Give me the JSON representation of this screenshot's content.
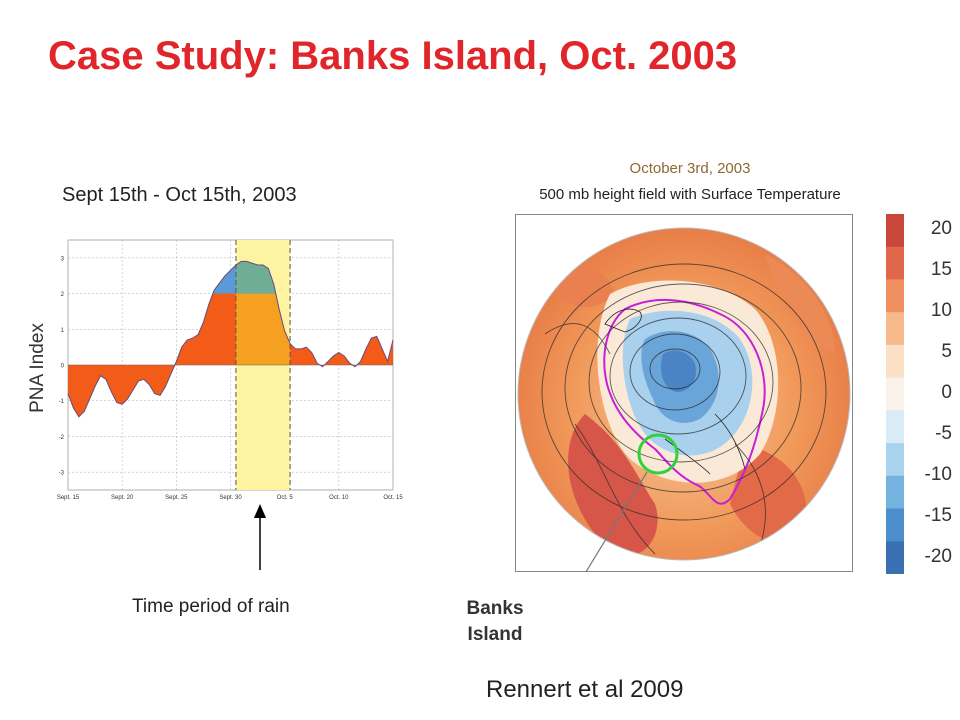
{
  "slide": {
    "title": "Case Study: Banks Island, Oct. 2003",
    "citation": "Rennert et al 2009"
  },
  "chart_data": {
    "type": "area",
    "title": "Sept 15th - Oct 15th, 2003",
    "ylabel": "PNA Index",
    "xlabel": "",
    "x_tick_labels": [
      "Sept. 15",
      "Sept. 20",
      "Sept. 25",
      "Sept. 30",
      "Oct. 5",
      "Oct. 10",
      "Oct. 15"
    ],
    "x_tick_days": [
      0,
      5,
      10,
      15,
      20,
      25,
      30
    ],
    "y_ticks": [
      3,
      2,
      1,
      0,
      -1,
      -2,
      -3
    ],
    "ylim": [
      -3.5,
      3.5
    ],
    "xlim": [
      0,
      30
    ],
    "grid": true,
    "series": [
      {
        "x": [
          0,
          0.5,
          1,
          1.5,
          2,
          2.5,
          3,
          3.5,
          4,
          4.5,
          5,
          5.5,
          6,
          6.5,
          7,
          7.5,
          8,
          8.5,
          9,
          9.5,
          10,
          10.5,
          11,
          11.5,
          12,
          12.5,
          13,
          13.5,
          14,
          14.5,
          15,
          15.5,
          16,
          16.5,
          17,
          17.5,
          18,
          18.5,
          19,
          19.5,
          20,
          20.5,
          21,
          21.5,
          22,
          22.5,
          23,
          23.5,
          24,
          24.5,
          25,
          25.5,
          26,
          26.5,
          27,
          27.5,
          28,
          28.5,
          29,
          29.5,
          30
        ],
        "y": [
          -0.8,
          -1.2,
          -1.45,
          -1.3,
          -0.95,
          -0.6,
          -0.3,
          -0.4,
          -0.75,
          -1.05,
          -1.1,
          -0.95,
          -0.7,
          -0.45,
          -0.4,
          -0.55,
          -0.8,
          -0.85,
          -0.6,
          -0.25,
          0.1,
          0.5,
          0.7,
          0.75,
          0.85,
          1.2,
          1.7,
          2.1,
          2.3,
          2.5,
          2.65,
          2.8,
          2.9,
          2.9,
          2.85,
          2.8,
          2.8,
          2.7,
          2.25,
          1.55,
          0.95,
          0.6,
          0.45,
          0.45,
          0.5,
          0.35,
          0.05,
          -0.05,
          0.1,
          0.25,
          0.35,
          0.25,
          0.05,
          -0.05,
          0.1,
          0.45,
          0.75,
          0.8,
          0.45,
          0.1,
          0.7
        ]
      }
    ],
    "highlight_period": {
      "start": 15.5,
      "end": 20.5,
      "label": "Time period of rain"
    },
    "highlight_inner": {
      "start": 15.5,
      "end": 20.5
    },
    "colors": {
      "fill_main": "#f25c18",
      "fill_inner": "#f5a020",
      "fill_upper": "#5b9bd5",
      "fill_upper_inner": "#6fad97",
      "highlight": "#fdf3a0",
      "outline": "#6a4a7a"
    }
  },
  "map": {
    "date": "October 3rd, 2003",
    "subtitle": "500 mb height field with Surface Temperature",
    "annotation": "Banks Island",
    "colorbar_ticks": [
      "20",
      "15",
      "10",
      "5",
      "0",
      "-5",
      "-10",
      "-15",
      "-20"
    ],
    "colorbar_colors": [
      "#c8463a",
      "#e0684a",
      "#f09060",
      "#f7b989",
      "#fce0c6",
      "#f9f3ec",
      "#d8ebf6",
      "#a8d3ee",
      "#74b2df",
      "#4c8ecb",
      "#3a6fb2"
    ]
  }
}
